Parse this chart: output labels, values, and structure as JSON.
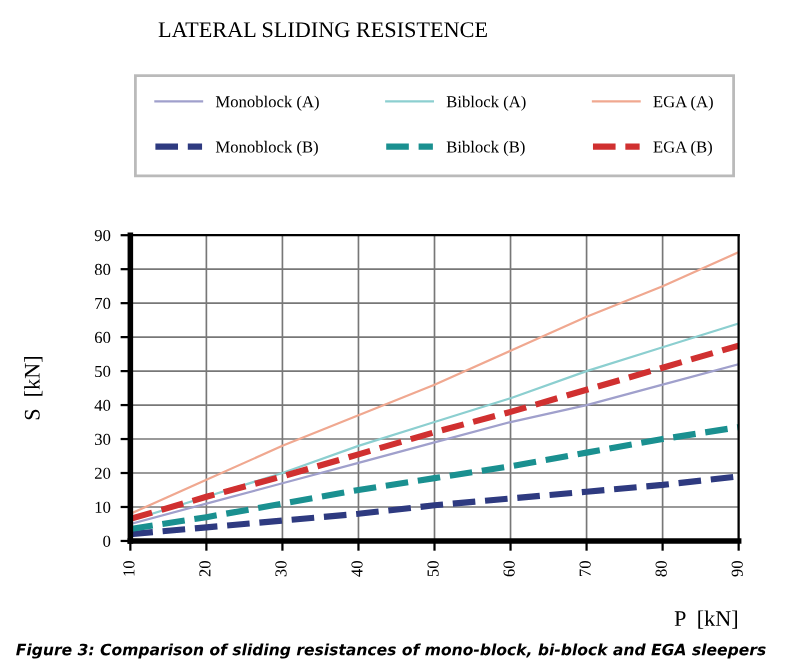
{
  "chart_data": {
    "type": "line",
    "title": "LATERAL SLIDING RESISTENCE",
    "xlabel": "P  [kN]",
    "ylabel": "S  [kN]",
    "x": [
      10,
      20,
      30,
      40,
      50,
      60,
      70,
      80,
      90
    ],
    "series": [
      {
        "name": "Monoblock (A)",
        "color": "#a0a0cc",
        "line_style": "solid",
        "values": [
          5,
          11,
          17,
          23,
          29,
          35,
          40,
          46,
          52
        ]
      },
      {
        "name": "Biblock (A)",
        "color": "#8ccfd0",
        "line_style": "solid",
        "values": [
          6,
          13,
          20,
          28,
          35,
          42,
          50,
          57,
          64
        ]
      },
      {
        "name": "EGA (A)",
        "color": "#f0a890",
        "line_style": "solid",
        "values": [
          8,
          18,
          28,
          37,
          46,
          56,
          66,
          75,
          85
        ]
      },
      {
        "name": "Monoblock (B)",
        "color": "#2e3a80",
        "line_style": "dashed",
        "values": [
          2,
          4,
          6,
          8,
          10.5,
          12.5,
          14.5,
          16.5,
          19
        ]
      },
      {
        "name": "Biblock (B)",
        "color": "#1a9090",
        "line_style": "dashed",
        "values": [
          3.5,
          7,
          11,
          15,
          18.5,
          22,
          26,
          30,
          33.5
        ]
      },
      {
        "name": "EGA (B)",
        "color": "#d03030",
        "line_style": "dashed",
        "values": [
          6.5,
          13,
          19,
          25.5,
          32,
          38,
          44.5,
          51,
          57.5
        ]
      }
    ],
    "xlim": [
      10,
      90
    ],
    "xticks": [
      10,
      20,
      30,
      40,
      50,
      60,
      70,
      80,
      90
    ],
    "ylim": [
      0,
      90
    ],
    "yticks": [
      0,
      10,
      20,
      30,
      40,
      50,
      60,
      70,
      80,
      90
    ],
    "grid": true,
    "legend": "top",
    "marker": "none",
    "annotations": [
      "Figure 3: Comparison of sliding resistances of mono-block, bi-block and EGA sleepers"
    ]
  }
}
